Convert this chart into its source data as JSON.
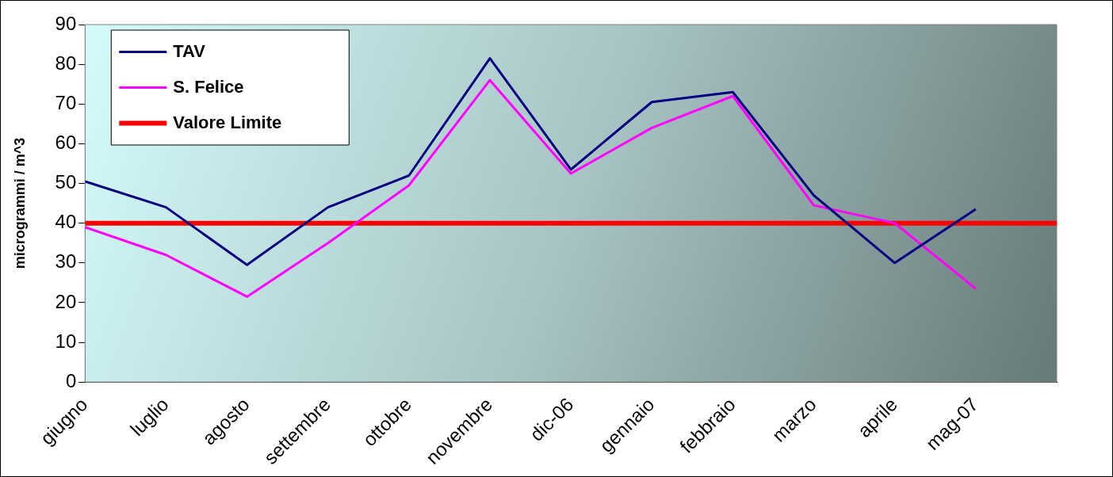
{
  "chart_data": {
    "type": "line",
    "ylabel": "microgrammi / m^3",
    "categories": [
      "giugno",
      "luglio",
      "agosto",
      "settembre",
      "ottobre",
      "novembre",
      "dic-06",
      "gennaio",
      "febbraio",
      "marzo",
      "aprile",
      "mag-07"
    ],
    "series": [
      {
        "name": "TAV",
        "color": "#000080",
        "values": [
          50.5,
          44,
          29.5,
          44,
          52,
          81.5,
          53.5,
          70.5,
          73,
          47,
          30,
          43.5
        ]
      },
      {
        "name": "S. Felice",
        "color": "#ff00ff",
        "values": [
          39,
          32,
          21.5,
          35,
          49.5,
          76,
          52.5,
          64,
          72,
          44.5,
          40,
          23.5
        ]
      }
    ],
    "ref_lines": [
      {
        "axis": "y",
        "value": 40,
        "label": "Valore Limite",
        "color": "#ff0000"
      }
    ],
    "ylim": [
      0,
      90
    ],
    "yticks": [
      0,
      10,
      20,
      30,
      40,
      50,
      60,
      70,
      80,
      90
    ],
    "legend": "top left",
    "grid": false,
    "marker": "none"
  }
}
